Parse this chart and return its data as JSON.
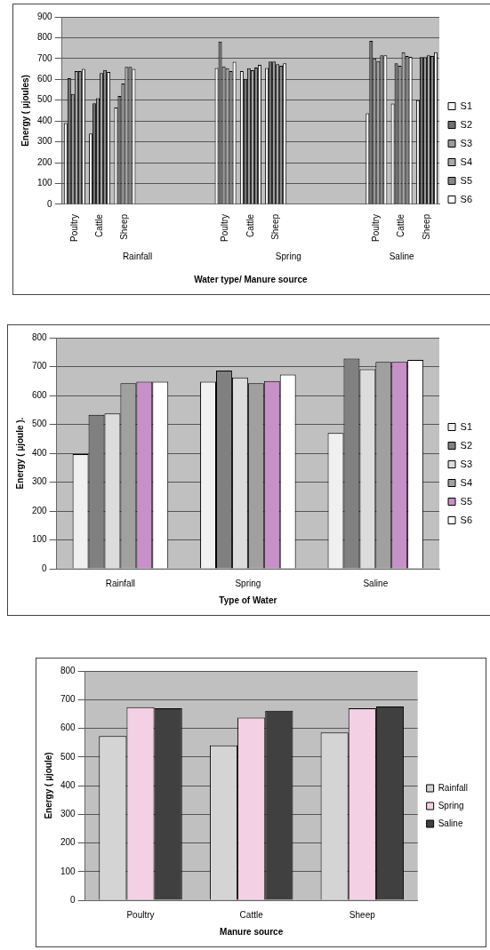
{
  "chart_data": [
    {
      "type": "bar",
      "ylabel": "Energy ( µjoules)",
      "xlabel": "Water type/ Manure source",
      "categories": [
        "Poultry",
        "Cattle",
        "Sheep",
        null,
        null,
        null,
        "Poultry",
        "Cattle",
        "Sheep",
        null,
        null,
        null,
        "Poultry",
        "Cattle",
        "Sheep"
      ],
      "series": [
        {
          "name": "S1",
          "color": "#f4f4f4",
          "values": [
            390,
            340,
            465,
            null,
            null,
            null,
            655,
            640,
            655,
            null,
            null,
            null,
            437,
            484,
            500
          ]
        },
        {
          "name": "S2",
          "color": "#707070",
          "values": [
            605,
            485,
            520,
            null,
            null,
            null,
            782,
            602,
            686,
            null,
            null,
            null,
            785,
            677,
            707
          ]
        },
        {
          "name": "S3",
          "color": "#9a9a9a",
          "values": [
            530,
            510,
            580,
            null,
            null,
            null,
            662,
            653,
            686,
            null,
            null,
            null,
            700,
            665,
            707
          ]
        },
        {
          "name": "S4",
          "color": "#a8a8a8",
          "values": [
            640,
            630,
            660,
            null,
            null,
            null,
            653,
            644,
            673,
            null,
            null,
            null,
            688,
            730,
            715
          ]
        },
        {
          "name": "S5",
          "color": "#888888",
          "values": [
            640,
            645,
            660,
            null,
            null,
            null,
            640,
            657,
            665,
            null,
            null,
            null,
            715,
            712,
            712
          ]
        },
        {
          "name": "S6",
          "color": "#ffffff",
          "values": [
            650,
            635,
            650,
            null,
            null,
            null,
            685,
            670,
            677,
            null,
            null,
            null,
            715,
            708,
            730
          ]
        }
      ],
      "annotations": [
        "Rainfall",
        "Spring",
        "Saline"
      ],
      "ylim": [
        0,
        900
      ],
      "yticks": [
        0,
        100,
        200,
        300,
        400,
        500,
        600,
        700,
        800,
        900
      ],
      "grid": "y",
      "legend": "right"
    },
    {
      "type": "bar",
      "ylabel": "Energy ( µjoule ).",
      "xlabel": "Type of Water",
      "categories": [
        "Rainfall",
        "Spring",
        "Saline"
      ],
      "series": [
        {
          "name": "S1",
          "color": "#f0f0f0",
          "values": [
            397,
            648,
            470
          ]
        },
        {
          "name": "S2",
          "color": "#808080",
          "values": [
            533,
            686,
            728
          ]
        },
        {
          "name": "S3",
          "color": "#dcdcdc",
          "values": [
            538,
            662,
            691
          ]
        },
        {
          "name": "S4",
          "color": "#a0a0a0",
          "values": [
            642,
            642,
            716
          ]
        },
        {
          "name": "S5",
          "color": "#c890c8",
          "values": [
            648,
            650,
            716
          ]
        },
        {
          "name": "S6",
          "color": "#ffffff",
          "values": [
            648,
            672,
            723
          ]
        }
      ],
      "ylim": [
        0,
        800
      ],
      "yticks": [
        0,
        100,
        200,
        300,
        400,
        500,
        600,
        700,
        800
      ],
      "grid": "y",
      "legend": "right"
    },
    {
      "type": "bar",
      "ylabel": "Energy ( µjoule)",
      "xlabel": "Manure source",
      "categories": [
        "Poultry",
        "Cattle",
        "Sheep"
      ],
      "series": [
        {
          "name": "Rainfall",
          "color": "#d4d4d4",
          "values": [
            573,
            540,
            585
          ]
        },
        {
          "name": "Spring",
          "color": "#f4d0e4",
          "values": [
            674,
            637,
            670
          ]
        },
        {
          "name": "Saline",
          "color": "#404040",
          "values": [
            670,
            661,
            676
          ]
        }
      ],
      "ylim": [
        0,
        800
      ],
      "yticks": [
        0,
        100,
        200,
        300,
        400,
        500,
        600,
        700,
        800
      ],
      "grid": "y",
      "legend": "right"
    }
  ]
}
